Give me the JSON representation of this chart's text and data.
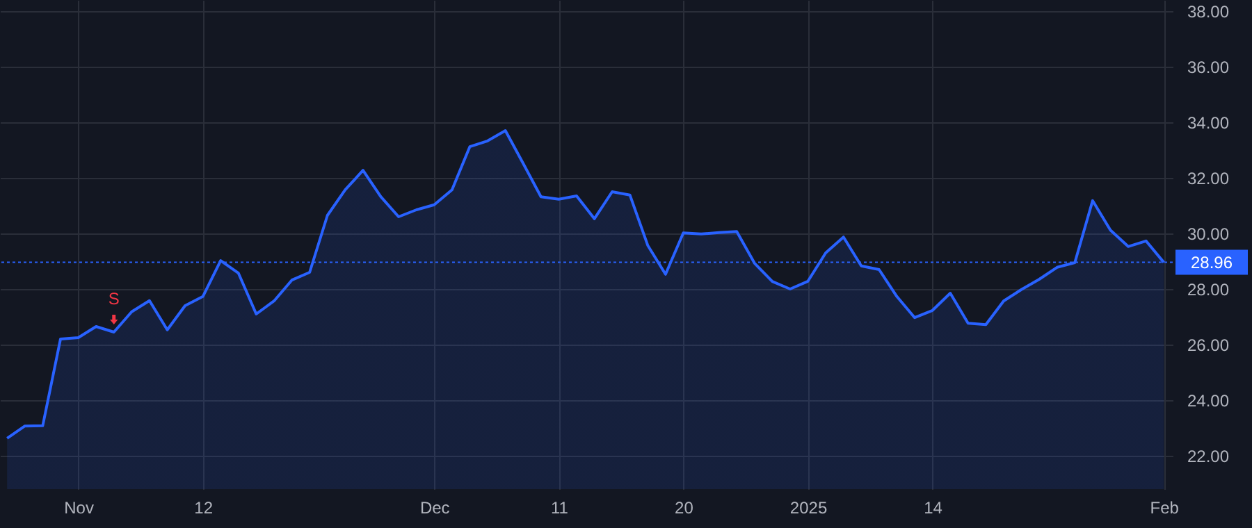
{
  "chart_data": {
    "type": "area",
    "categories": [
      null,
      null,
      null,
      null,
      "Nov",
      null,
      null,
      null,
      null,
      null,
      null,
      "12",
      null,
      null,
      null,
      null,
      null,
      null,
      null,
      null,
      null,
      null,
      null,
      null,
      "Dec",
      null,
      null,
      null,
      null,
      null,
      null,
      "11",
      null,
      null,
      null,
      null,
      null,
      null,
      "20",
      null,
      null,
      null,
      null,
      null,
      null,
      "2025",
      null,
      null,
      null,
      null,
      null,
      null,
      "14",
      null,
      null,
      null,
      null,
      null,
      null,
      null,
      null,
      null,
      null,
      null,
      null,
      "Feb"
    ],
    "series": [
      {
        "color": "#2962ff",
        "values": [
          22.63,
          23.07,
          23.08,
          26.2,
          26.25,
          26.65,
          26.45,
          27.18,
          27.58,
          26.53,
          27.4,
          27.73,
          29.02,
          28.57,
          27.1,
          27.57,
          28.32,
          28.6,
          30.65,
          31.57,
          32.27,
          31.32,
          30.6,
          30.85,
          31.03,
          31.57,
          33.12,
          33.33,
          33.7,
          32.52,
          31.32,
          31.23,
          31.35,
          30.53,
          31.5,
          31.38,
          29.57,
          28.53,
          30.02,
          29.98,
          30.03,
          30.07,
          28.93,
          28.27,
          28.0,
          28.28,
          29.3,
          29.87,
          28.83,
          28.7,
          27.73,
          26.97,
          27.23,
          27.85,
          26.77,
          26.72,
          27.57,
          27.98,
          28.35,
          28.78,
          28.95,
          31.18,
          30.12,
          29.53,
          29.73,
          28.96
        ]
      }
    ],
    "ylim": [
      20.8,
      38.4
    ],
    "yticks": [
      {
        "value": 22,
        "label": "22.00"
      },
      {
        "value": 24,
        "label": "24.00"
      },
      {
        "value": 26,
        "label": "26.00"
      },
      {
        "value": 28,
        "label": "28.00"
      },
      {
        "value": 30,
        "label": "30.00"
      },
      {
        "value": 32,
        "label": "32.00"
      },
      {
        "value": 34,
        "label": "34.00"
      },
      {
        "value": 36,
        "label": "36.00"
      },
      {
        "value": 38,
        "label": "38.00"
      }
    ],
    "ref_lines": [
      {
        "axis": "y",
        "value": 28.96,
        "label": "28.96",
        "color": "#2962ff",
        "line_style": "dotted"
      }
    ],
    "annotations": [
      {
        "text": "S",
        "y": 26.45
      }
    ],
    "grid": true
  }
}
